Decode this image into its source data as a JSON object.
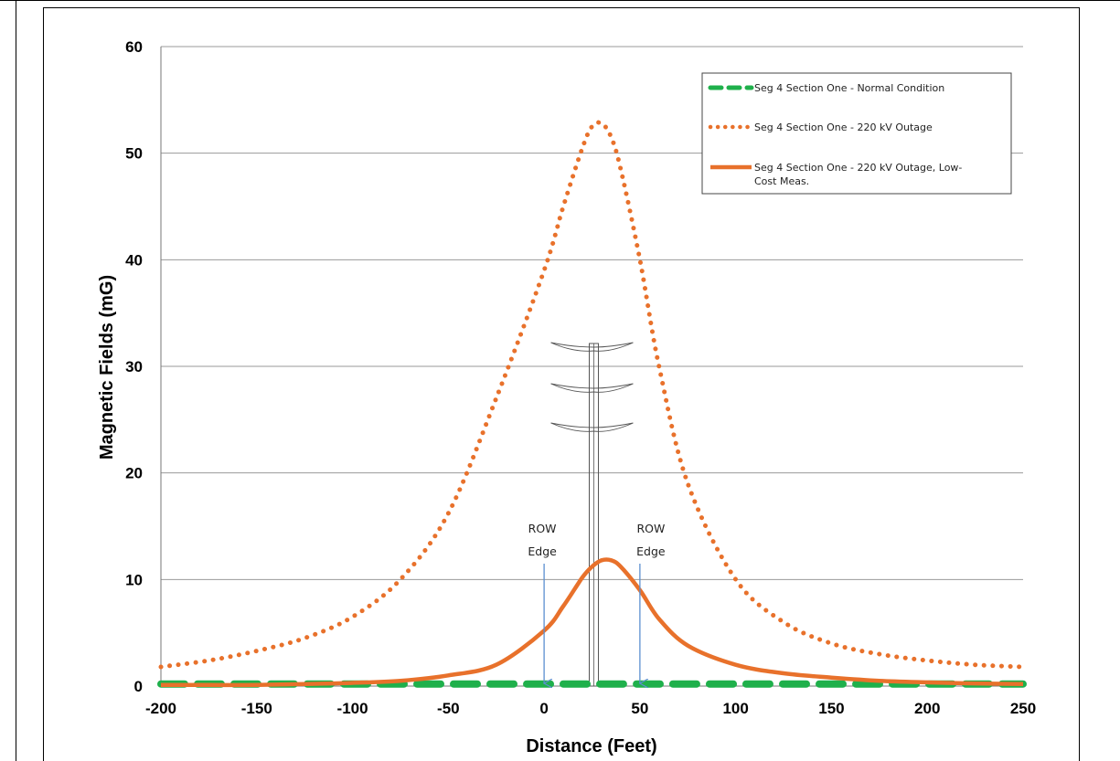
{
  "chart_data": {
    "type": "line",
    "xlabel": "Distance (Feet)",
    "ylabel": "Magnetic Fields (mG)",
    "xlim": [
      -200,
      250
    ],
    "ylim": [
      0,
      60
    ],
    "x_ticks": [
      "-200",
      "-150",
      "-100",
      "-50",
      "0",
      "50",
      "100",
      "150",
      "200",
      "250"
    ],
    "y_ticks": [
      "0",
      "10",
      "20",
      "30",
      "40",
      "50",
      "60"
    ],
    "grid": "horizontal",
    "legend_position": "top-right",
    "x": [
      -200,
      -175,
      -150,
      -125,
      -100,
      -75,
      -50,
      -25,
      0,
      10,
      20,
      25,
      30,
      35,
      40,
      50,
      60,
      75,
      100,
      125,
      150,
      175,
      200,
      225,
      250
    ],
    "series": [
      {
        "name": "Seg 4 Section One - Normal Condition",
        "style": "dashed",
        "color": "#1fb04b",
        "values": [
          0.2,
          0.2,
          0.2,
          0.2,
          0.2,
          0.2,
          0.2,
          0.2,
          0.2,
          0.2,
          0.2,
          0.2,
          0.2,
          0.2,
          0.2,
          0.2,
          0.2,
          0.2,
          0.2,
          0.2,
          0.2,
          0.2,
          0.2,
          0.2,
          0.2
        ]
      },
      {
        "name": "Seg 4 Section One - 220 kV Outage",
        "style": "dotted",
        "color": "#e8712b",
        "values": [
          1.8,
          2.4,
          3.3,
          4.5,
          6.5,
          10.0,
          16.2,
          27.0,
          39.0,
          45.0,
          50.5,
          52.5,
          52.8,
          51.5,
          48.5,
          40.0,
          30.0,
          19.0,
          10.0,
          6.0,
          4.0,
          3.0,
          2.4,
          2.0,
          1.8
        ]
      },
      {
        "name": "Seg 4 Section One - 220 kV Outage, Low-Cost Meas.",
        "style": "solid",
        "color": "#e8712b",
        "values": [
          0.1,
          0.1,
          0.1,
          0.2,
          0.3,
          0.5,
          1.0,
          2.0,
          5.2,
          7.5,
          10.2,
          11.2,
          11.8,
          11.8,
          11.2,
          9.0,
          6.3,
          3.8,
          2.0,
          1.2,
          0.8,
          0.5,
          0.35,
          0.25,
          0.2
        ]
      }
    ],
    "annotations": [
      {
        "line1": "ROW",
        "line2": "Edge",
        "x": 0
      },
      {
        "line1": "ROW",
        "line2": "Edge",
        "x": 50
      }
    ],
    "tower_x": 25,
    "arrow_color": "#5b8fd0"
  }
}
